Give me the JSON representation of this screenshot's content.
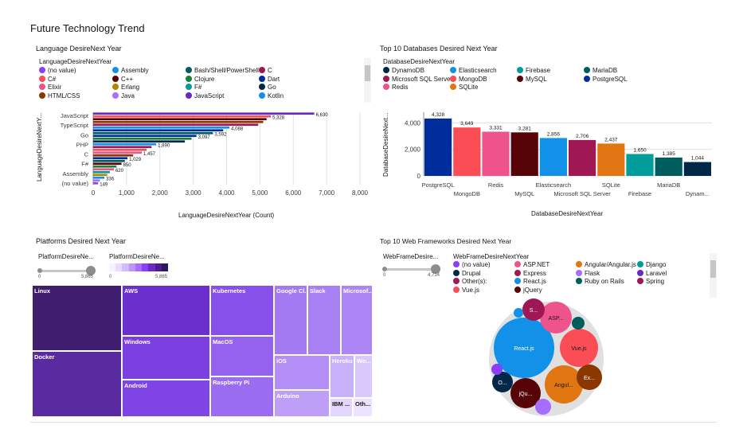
{
  "dashboard": {
    "title": "Future Technology Trend"
  },
  "panel_language": {
    "title": "Language DesireNext Year",
    "legend_title": "LanguageDesireNextYear",
    "legend": [
      {
        "label": "(no value)",
        "color": "#8a3ffc"
      },
      {
        "label": "Assembly",
        "color": "#1192e8"
      },
      {
        "label": "Bash/Shell/PowerShell",
        "color": "#005d5d"
      },
      {
        "label": "C",
        "color": "#9f1853"
      },
      {
        "label": "C#",
        "color": "#fa4d56"
      },
      {
        "label": "C++",
        "color": "#570408"
      },
      {
        "label": "Clojure",
        "color": "#198038"
      },
      {
        "label": "Dart",
        "color": "#002d9c"
      },
      {
        "label": "Elixir",
        "color": "#ee538b"
      },
      {
        "label": "Erlang",
        "color": "#b28600"
      },
      {
        "label": "F#",
        "color": "#009d9a"
      },
      {
        "label": "Go",
        "color": "#012749"
      },
      {
        "label": "HTML/CSS",
        "color": "#8a3800"
      },
      {
        "label": "Java",
        "color": "#a56eff"
      },
      {
        "label": "JavaScript",
        "color": "#6929c4"
      },
      {
        "label": "Kotlin",
        "color": "#1192e8"
      }
    ]
  },
  "panel_databases": {
    "title": "Top 10 Databases Desired Next Year",
    "legend_title": "DatabaseDesireNextYear",
    "legend": [
      {
        "label": "DynamoDB",
        "color": "#012749"
      },
      {
        "label": "Elasticsearch",
        "color": "#1192e8"
      },
      {
        "label": "Firebase",
        "color": "#009d9a"
      },
      {
        "label": "MariaDB",
        "color": "#005d5d"
      },
      {
        "label": "Microsoft SQL Server",
        "color": "#9f1853"
      },
      {
        "label": "MongoDB",
        "color": "#fa4d56"
      },
      {
        "label": "MySQL",
        "color": "#570408"
      },
      {
        "label": "PostgreSQL",
        "color": "#002d9c"
      },
      {
        "label": "Redis",
        "color": "#ee538b"
      },
      {
        "label": "SQLite",
        "color": "#e07512"
      }
    ]
  },
  "panel_platforms": {
    "title": "Platforms Desired Next Year",
    "slider_label": "PlatformDesireNe...",
    "slider_min": "0",
    "slider_max": "5,865",
    "scale_label": "PlatformDesireNe...",
    "scale_min": "0",
    "scale_max": "5,865"
  },
  "panel_web": {
    "title": "Top 10 Web Frameworks Desired Next Year",
    "slider_label": "WebFrameDesire...",
    "slider_min": "0",
    "slider_max": "4,714",
    "legend_title": "WebFrameDesireNextYear",
    "legend": [
      {
        "label": "(no value)",
        "color": "#8a3ffc"
      },
      {
        "label": "ASP.NET",
        "color": "#ee538b"
      },
      {
        "label": "Angular/Angular.js",
        "color": "#e07512"
      },
      {
        "label": "Django",
        "color": "#009d9a"
      },
      {
        "label": "Drupal",
        "color": "#012749"
      },
      {
        "label": "Express",
        "color": "#9f1853"
      },
      {
        "label": "Flask",
        "color": "#a56eff"
      },
      {
        "label": "Laravel",
        "color": "#6929c4"
      },
      {
        "label": "Other(s):",
        "color": "#9f1853"
      },
      {
        "label": "React.js",
        "color": "#1192e8"
      },
      {
        "label": "Ruby on Rails",
        "color": "#005d5d"
      },
      {
        "label": "Spring",
        "color": "#9f1853"
      },
      {
        "label": "Vue.js",
        "color": "#fa4d56"
      },
      {
        "label": "jQuery",
        "color": "#570408"
      }
    ],
    "bubble_labels": {
      "react": "React.js",
      "vue": "Vue.js",
      "asp": "ASP...",
      "s": "S...",
      "angular": "Angul...",
      "ex": "Ex...",
      "o": "O...",
      "jqu": "jQu..."
    }
  },
  "chart_data": [
    {
      "type": "bar",
      "orientation": "horizontal",
      "ylabel": "LanguageDesireNextY...",
      "xlabel": "LanguageDesireNextYear (Count)",
      "xlim": [
        0,
        8000
      ],
      "xticks": [
        "0",
        "1,000",
        "2,000",
        "3,000",
        "4,000",
        "5,000",
        "6,000",
        "7,000",
        "8,000"
      ],
      "shown_category_labels": [
        "JavaScript",
        "TypeScript",
        "Go",
        "PHP",
        "C",
        "F#",
        "Assembly",
        "(no value)"
      ],
      "bars": [
        {
          "value": 6630,
          "label": "6,630",
          "color": "#6929c4"
        },
        {
          "value": 5328,
          "label": "5,328",
          "color": "#fa4d56"
        },
        {
          "value": 5200,
          "label": "",
          "color": "#570408"
        },
        {
          "value": 5100,
          "label": "",
          "color": "#8a3800"
        },
        {
          "value": 4950,
          "label": "",
          "color": "#9f1853"
        },
        {
          "value": 4088,
          "label": "4,088",
          "color": "#1192e8"
        },
        {
          "value": 3900,
          "label": "",
          "color": "#002d9c"
        },
        {
          "value": 3592,
          "label": "3,592",
          "color": "#005d5d"
        },
        {
          "value": 3097,
          "label": "3,097",
          "color": "#002d9c"
        },
        {
          "value": 2950,
          "label": "",
          "color": "#198038"
        },
        {
          "value": 2750,
          "label": "",
          "color": "#012749"
        },
        {
          "value": 1890,
          "label": "1,890",
          "color": "#1192e8"
        },
        {
          "value": 1750,
          "label": "",
          "color": "#9f1853"
        },
        {
          "value": 1600,
          "label": "",
          "color": "#fa4d56"
        },
        {
          "value": 1457,
          "label": "1,457",
          "color": "#ee538b"
        },
        {
          "value": 1200,
          "label": "",
          "color": "#8a3800"
        },
        {
          "value": 1029,
          "label": "1,029",
          "color": "#002d9c"
        },
        {
          "value": 950,
          "label": "",
          "color": "#005d5d"
        },
        {
          "value": 850,
          "label": "850",
          "color": "#570408"
        },
        {
          "value": 700,
          "label": "",
          "color": "#198038"
        },
        {
          "value": 620,
          "label": "620",
          "color": "#ee538b"
        },
        {
          "value": 500,
          "label": "",
          "color": "#009d9a"
        },
        {
          "value": 420,
          "label": "",
          "color": "#b28600"
        },
        {
          "value": 336,
          "label": "336",
          "color": "#1192e8"
        },
        {
          "value": 200,
          "label": "",
          "color": "#a56eff"
        },
        {
          "value": 149,
          "label": "149",
          "color": "#8a3ffc"
        }
      ]
    },
    {
      "type": "bar",
      "xlabel": "DatabaseDesireNextYear",
      "ylabel": "DatabaseDesireNext...",
      "ylim": [
        0,
        4800
      ],
      "yticks": [
        "0",
        "2,000",
        "4,000"
      ],
      "categories": [
        "PostgreSQL",
        "MongoDB",
        "Redis",
        "MySQL",
        "Elasticsearch",
        "Microsoft SQL Server",
        "SQLite",
        "Firebase",
        "MariaDB",
        "Dynam..."
      ],
      "values": [
        4328,
        3649,
        3331,
        3281,
        2856,
        2706,
        2437,
        1650,
        1385,
        1044
      ],
      "value_labels": [
        "4,328",
        "3,649",
        "3,331",
        "3,281",
        "2,856",
        "2,706",
        "2,437",
        "1,650",
        "1,385",
        "1,044"
      ],
      "colors": [
        "#002d9c",
        "#fa4d56",
        "#ee538b",
        "#570408",
        "#1192e8",
        "#9f1853",
        "#e07512",
        "#009d9a",
        "#005d5d",
        "#012749"
      ]
    },
    {
      "type": "treemap",
      "items": [
        {
          "label": "Linux"
        },
        {
          "label": "Docker"
        },
        {
          "label": "AWS"
        },
        {
          "label": "Windows"
        },
        {
          "label": "Android"
        },
        {
          "label": "Kubernetes"
        },
        {
          "label": "MacOS"
        },
        {
          "label": "Raspberry Pi"
        },
        {
          "label": "Google Cl..."
        },
        {
          "label": "Slack"
        },
        {
          "label": "Microsof..."
        },
        {
          "label": "iOS"
        },
        {
          "label": "Arduino"
        },
        {
          "label": "Heroku"
        },
        {
          "label": "Wo..."
        },
        {
          "label": "IBM ..."
        },
        {
          "label": "Oth..."
        }
      ]
    }
  ]
}
